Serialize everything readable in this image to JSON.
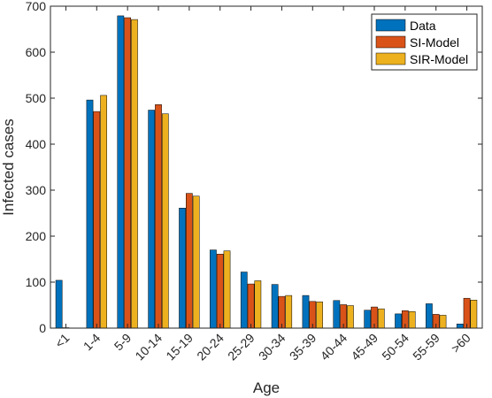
{
  "chart_data": {
    "type": "bar",
    "xlabel": "Age",
    "ylabel": "Infected cases",
    "ylim": [
      0,
      700
    ],
    "yticks": [
      0,
      100,
      200,
      300,
      400,
      500,
      600,
      700
    ],
    "grid": false,
    "legend_position": "top-right",
    "categories": [
      "<1",
      "1-4",
      "5-9",
      "10-14",
      "15-19",
      "20-24",
      "25-29",
      "30-34",
      "35-39",
      "40-44",
      "45-49",
      "50-54",
      "55-59",
      ">60"
    ],
    "series": [
      {
        "name": "Data",
        "color": "#0072BD",
        "values": [
          104,
          496,
          679,
          474,
          261,
          170,
          122,
          95,
          71,
          60,
          39,
          31,
          53,
          9
        ]
      },
      {
        "name": "SI-Model",
        "color": "#D95319",
        "values": [
          1,
          471,
          675,
          486,
          293,
          161,
          96,
          69,
          58,
          51,
          46,
          38,
          30,
          65
        ]
      },
      {
        "name": "SIR-Model",
        "color": "#EDB120",
        "values": [
          0,
          506,
          671,
          466,
          287,
          168,
          103,
          71,
          57,
          49,
          42,
          36,
          28,
          61
        ]
      }
    ]
  }
}
